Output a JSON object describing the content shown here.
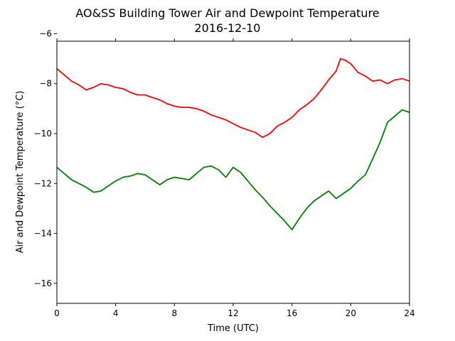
{
  "chart_data": {
    "type": "line",
    "title": "AO&SS Building Tower Air and Dewpoint Temperature",
    "subtitle": "2016-12-10",
    "xlabel": "Time (UTC)",
    "ylabel": "Air and Dewpoint Temperature (°C)",
    "xlim": [
      0,
      24
    ],
    "ylim": [
      -16.8,
      -6.3
    ],
    "xticks": [
      0,
      4,
      8,
      12,
      16,
      20,
      24
    ],
    "yticks": [
      -16,
      -14,
      -12,
      -10,
      -8,
      -6
    ],
    "xtick_labels": [
      "0",
      "4",
      "8",
      "12",
      "16",
      "20",
      "24"
    ],
    "ytick_labels": [
      "−16",
      "−14",
      "−12",
      "−10",
      "−8",
      "−6"
    ],
    "grid": false,
    "series": [
      {
        "color": "#ff0000",
        "x": [
          0,
          0.5,
          1.0,
          1.5,
          2.0,
          2.5,
          3.0,
          3.5,
          4.0,
          4.5,
          5.0,
          5.5,
          6.0,
          6.5,
          7.0,
          7.5,
          8.0,
          8.5,
          9.0,
          9.5,
          10.0,
          10.5,
          11.0,
          11.5,
          12.0,
          12.5,
          13.0,
          13.5,
          14.0,
          14.5,
          15.0,
          15.5,
          16.0,
          16.5,
          17.0,
          17.5,
          18.0,
          18.5,
          19.0,
          19.3,
          19.6,
          20.0,
          20.5,
          21.0,
          21.5,
          22.0,
          22.5,
          23.0,
          23.5,
          24.0
        ],
        "y": [
          -7.4,
          -7.65,
          -7.9,
          -8.05,
          -8.25,
          -8.15,
          -8.0,
          -8.05,
          -8.15,
          -8.2,
          -8.35,
          -8.45,
          -8.45,
          -8.55,
          -8.65,
          -8.8,
          -8.9,
          -8.95,
          -8.95,
          -9.0,
          -9.1,
          -9.25,
          -9.35,
          -9.45,
          -9.6,
          -9.75,
          -9.85,
          -9.95,
          -10.15,
          -10.0,
          -9.7,
          -9.55,
          -9.35,
          -9.05,
          -8.85,
          -8.6,
          -8.25,
          -7.85,
          -7.5,
          -7.0,
          -7.05,
          -7.2,
          -7.55,
          -7.7,
          -7.9,
          -7.85,
          -8.0,
          -7.85,
          -7.8,
          -7.9
        ]
      },
      {
        "color": "#008000",
        "x": [
          0,
          0.5,
          1.0,
          1.5,
          2.0,
          2.5,
          3.0,
          3.5,
          4.0,
          4.5,
          5.0,
          5.5,
          6.0,
          6.5,
          7.0,
          7.5,
          8.0,
          8.5,
          9.0,
          9.5,
          10.0,
          10.5,
          11.0,
          11.5,
          12.0,
          12.5,
          13.0,
          13.5,
          14.0,
          14.5,
          15.0,
          15.5,
          16.0,
          16.5,
          17.0,
          17.5,
          18.0,
          18.5,
          19.0,
          19.5,
          20.0,
          20.5,
          21.0,
          21.5,
          22.0,
          22.5,
          23.0,
          23.5,
          24.0
        ],
        "y": [
          -11.35,
          -11.6,
          -11.85,
          -12.0,
          -12.15,
          -12.35,
          -12.3,
          -12.1,
          -11.9,
          -11.75,
          -11.7,
          -11.6,
          -11.65,
          -11.85,
          -12.05,
          -11.85,
          -11.75,
          -11.8,
          -11.85,
          -11.6,
          -11.35,
          -11.3,
          -11.45,
          -11.75,
          -11.35,
          -11.55,
          -11.9,
          -12.25,
          -12.55,
          -12.9,
          -13.2,
          -13.5,
          -13.85,
          -13.4,
          -13.0,
          -12.7,
          -12.5,
          -12.3,
          -12.6,
          -12.4,
          -12.2,
          -11.9,
          -11.65,
          -11.0,
          -10.35,
          -9.55,
          -9.3,
          -9.05,
          -9.15
        ]
      }
    ]
  }
}
